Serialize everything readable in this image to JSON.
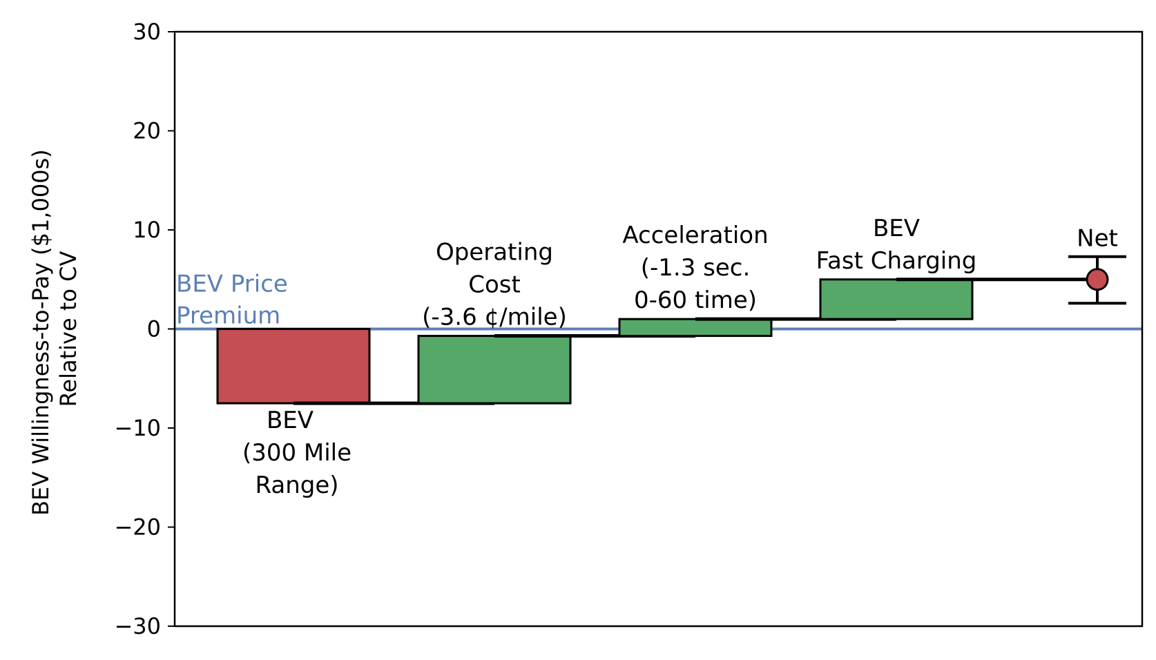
{
  "chart_data": {
    "type": "waterfall",
    "ylabel_lines": [
      "BEV Willingness-to-Pay ($1,000s)",
      "Relative to CV"
    ],
    "ylim": [
      -30,
      30
    ],
    "yticks": [
      30,
      20,
      10,
      0,
      -10,
      -20,
      -30
    ],
    "yticks_text": [
      "30",
      "20",
      "10",
      "0",
      "−10",
      "−20",
      "−30"
    ],
    "reference_line": {
      "value": 0,
      "label_lines": [
        "BEV Price",
        "Premium"
      ],
      "color": "#5b7fb8"
    },
    "colors": {
      "negative": "#c44e52",
      "positive": "#55a868",
      "net": "#c44e52"
    },
    "steps": [
      {
        "label_lines": [
          "BEV",
          "(300 Mile",
          "Range)"
        ],
        "value": -7.5,
        "start": 0,
        "end": -7.5,
        "label_pos": "below"
      },
      {
        "label_lines": [
          "Operating",
          "Cost",
          "(-3.6 ¢/mile)"
        ],
        "value": 6.8,
        "start": -7.5,
        "end": -0.7,
        "label_pos": "above"
      },
      {
        "label_lines": [
          "Acceleration",
          "(-1.3 sec.",
          "0-60 time)"
        ],
        "value": 1.7,
        "start": -0.7,
        "end": 1.0,
        "label_pos": "above"
      },
      {
        "label_lines": [
          "BEV",
          "Fast Charging"
        ],
        "value": 4.0,
        "start": 1.0,
        "end": 5.0,
        "label_pos": "above"
      }
    ],
    "net": {
      "label": "Net",
      "value": 5.0,
      "err_low": 2.6,
      "err_high": 7.3
    }
  }
}
